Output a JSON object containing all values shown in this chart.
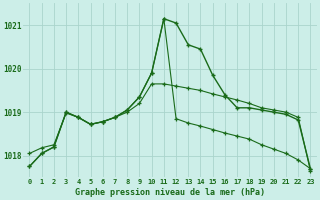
{
  "title": "Graphe pression niveau de la mer (hPa)",
  "background_color": "#cceee8",
  "grid_color": "#aad4cc",
  "line_color": "#1a6b1a",
  "x_labels": [
    "0",
    "1",
    "2",
    "3",
    "4",
    "5",
    "6",
    "7",
    "8",
    "9",
    "10",
    "11",
    "12",
    "13",
    "14",
    "15",
    "16",
    "17",
    "18",
    "19",
    "20",
    "21",
    "22",
    "23"
  ],
  "ylim": [
    1017.5,
    1021.5
  ],
  "yticks": [
    1018,
    1019,
    1020,
    1021
  ],
  "series1": [
    1017.75,
    1018.05,
    1018.2,
    1019.0,
    1018.88,
    1018.72,
    1018.78,
    1018.88,
    1019.05,
    1019.35,
    1019.9,
    1021.15,
    1021.05,
    1020.55,
    1020.45,
    1019.85,
    1019.4,
    1019.1,
    1019.1,
    1019.05,
    1019.0,
    1018.95,
    1018.82,
    1017.7
  ],
  "series2": [
    1017.75,
    1018.05,
    1018.2,
    1019.0,
    1018.88,
    1018.72,
    1018.78,
    1018.88,
    1019.05,
    1019.35,
    1019.9,
    1021.15,
    1018.85,
    1018.75,
    1018.68,
    1018.6,
    1018.52,
    1018.45,
    1018.38,
    1018.25,
    1018.15,
    1018.05,
    1017.9,
    1017.7
  ],
  "series3": [
    1018.05,
    1018.18,
    1018.25,
    1018.98,
    1018.88,
    1018.72,
    1018.78,
    1018.88,
    1019.0,
    1019.2,
    1019.65,
    1019.65,
    1019.6,
    1019.55,
    1019.5,
    1019.42,
    1019.35,
    1019.28,
    1019.2,
    1019.1,
    1019.05,
    1019.0,
    1018.88,
    1017.65
  ]
}
